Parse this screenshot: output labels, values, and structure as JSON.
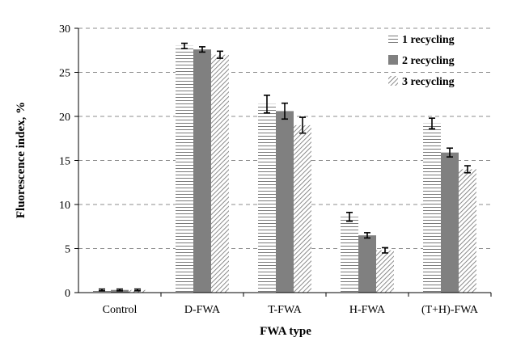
{
  "chart_data": {
    "type": "bar",
    "title": "",
    "xlabel": "FWA type",
    "ylabel": "Fluorescence index, %",
    "ylim": [
      0,
      30
    ],
    "yticks": [
      0,
      5,
      10,
      15,
      20,
      25,
      30
    ],
    "grid": "horizontal dashed",
    "legend_position": "top-right",
    "categories": [
      "Control",
      "D-FWA",
      "T-FWA",
      "H-FWA",
      "(T+H)-FWA"
    ],
    "series": [
      {
        "name": "1 recycling",
        "pattern": "horizontal-lines",
        "color": "#777777",
        "values": [
          0.3,
          28.0,
          21.4,
          8.6,
          19.2
        ],
        "errors": [
          0.1,
          0.3,
          1.0,
          0.5,
          0.6
        ]
      },
      {
        "name": "2 recycling",
        "pattern": "solid",
        "color": "#808080",
        "values": [
          0.3,
          27.6,
          20.6,
          6.5,
          15.9
        ],
        "errors": [
          0.1,
          0.3,
          0.9,
          0.3,
          0.5
        ]
      },
      {
        "name": "3 recycling",
        "pattern": "diagonal-lines",
        "color": "#777777",
        "values": [
          0.3,
          27.0,
          19.0,
          4.8,
          14.0
        ],
        "errors": [
          0.1,
          0.4,
          0.9,
          0.3,
          0.4
        ]
      }
    ]
  }
}
